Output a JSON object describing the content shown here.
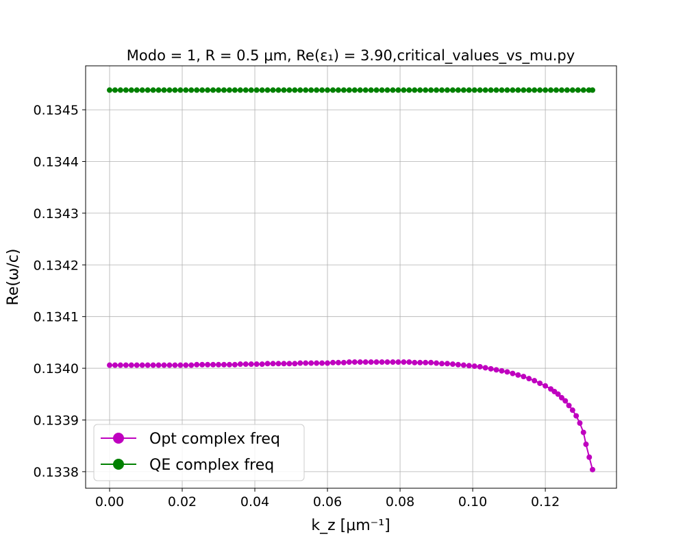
{
  "chart_data": {
    "type": "line",
    "title": "Modo = 1, R = 0.5 μm, Re(ε₁) = 3.90,critical_values_vs_mu.py",
    "xlabel": "k_z [μm⁻¹]",
    "ylabel": "Re(ω/c)",
    "xlim": [
      -0.0066,
      0.1396
    ],
    "ylim": [
      0.133768,
      0.134585
    ],
    "xticks": [
      0.0,
      0.02,
      0.04,
      0.06,
      0.08,
      0.1,
      0.12
    ],
    "xtick_labels": [
      "0.00",
      "0.02",
      "0.04",
      "0.06",
      "0.08",
      "0.10",
      "0.12"
    ],
    "yticks": [
      0.1338,
      0.1339,
      0.134,
      0.1341,
      0.1342,
      0.1343,
      0.1344,
      0.1345
    ],
    "ytick_labels": [
      "0.1338",
      "0.1339",
      "0.1340",
      "0.1341",
      "0.1342",
      "0.1343",
      "0.1344",
      "0.1345"
    ],
    "grid": true,
    "legend_position": "bottom-left",
    "series": [
      {
        "name": "Opt complex freq",
        "color": "#bf00bf",
        "marker": "circle",
        "x": [
          0.0,
          0.0015,
          0.003,
          0.0045,
          0.006,
          0.0075,
          0.009,
          0.0105,
          0.012,
          0.0135,
          0.015,
          0.0165,
          0.018,
          0.0195,
          0.021,
          0.0225,
          0.024,
          0.0255,
          0.027,
          0.0285,
          0.03,
          0.0315,
          0.033,
          0.0345,
          0.036,
          0.0375,
          0.039,
          0.0405,
          0.042,
          0.0435,
          0.045,
          0.0465,
          0.048,
          0.0495,
          0.051,
          0.0525,
          0.054,
          0.0555,
          0.057,
          0.0585,
          0.06,
          0.0615,
          0.063,
          0.0645,
          0.066,
          0.0675,
          0.069,
          0.0705,
          0.072,
          0.0735,
          0.075,
          0.0765,
          0.078,
          0.0795,
          0.081,
          0.0825,
          0.084,
          0.0855,
          0.087,
          0.0885,
          0.09,
          0.0915,
          0.093,
          0.0945,
          0.096,
          0.0975,
          0.099,
          0.1005,
          0.102,
          0.1035,
          0.105,
          0.1065,
          0.108,
          0.1095,
          0.111,
          0.1125,
          0.114,
          0.1155,
          0.117,
          0.1185,
          0.12,
          0.1215,
          0.1225,
          0.1235,
          0.1245,
          0.1255,
          0.1265,
          0.1275,
          0.1285,
          0.1295,
          0.1305,
          0.1312,
          0.1321,
          0.133
        ],
        "y": [
          0.134006,
          0.134006,
          0.134006,
          0.134006,
          0.134006,
          0.134006,
          0.134006,
          0.134006,
          0.134006,
          0.134006,
          0.134006,
          0.134006,
          0.134006,
          0.134006,
          0.134006,
          0.134006,
          0.134007,
          0.134007,
          0.134007,
          0.134007,
          0.134007,
          0.134007,
          0.134007,
          0.134007,
          0.134008,
          0.134008,
          0.134008,
          0.134008,
          0.134008,
          0.134009,
          0.134009,
          0.134009,
          0.134009,
          0.134009,
          0.134009,
          0.13401,
          0.13401,
          0.13401,
          0.13401,
          0.13401,
          0.13401,
          0.134011,
          0.134011,
          0.134011,
          0.134012,
          0.134012,
          0.134012,
          0.134012,
          0.134012,
          0.134012,
          0.134012,
          0.134012,
          0.134012,
          0.134012,
          0.134012,
          0.134012,
          0.134011,
          0.134011,
          0.134011,
          0.134011,
          0.13401,
          0.134009,
          0.134009,
          0.134008,
          0.134007,
          0.134006,
          0.134005,
          0.134004,
          0.134003,
          0.134001,
          0.133999,
          0.133997,
          0.133995,
          0.133993,
          0.13399,
          0.133987,
          0.133984,
          0.13398,
          0.133976,
          0.133971,
          0.133966,
          0.13396,
          0.133955,
          0.13395,
          0.133943,
          0.133937,
          0.133928,
          0.133919,
          0.133908,
          0.133894,
          0.133876,
          0.133853,
          0.133828,
          0.133804
        ]
      },
      {
        "name": "QE complex freq",
        "color": "#008000",
        "marker": "circle",
        "x": [
          0.0,
          0.0015,
          0.003,
          0.0045,
          0.006,
          0.0075,
          0.009,
          0.0105,
          0.012,
          0.0135,
          0.015,
          0.0165,
          0.018,
          0.0195,
          0.021,
          0.0225,
          0.024,
          0.0255,
          0.027,
          0.0285,
          0.03,
          0.0315,
          0.033,
          0.0345,
          0.036,
          0.0375,
          0.039,
          0.0405,
          0.042,
          0.0435,
          0.045,
          0.0465,
          0.048,
          0.0495,
          0.051,
          0.0525,
          0.054,
          0.0555,
          0.057,
          0.0585,
          0.06,
          0.0615,
          0.063,
          0.0645,
          0.066,
          0.0675,
          0.069,
          0.0705,
          0.072,
          0.0735,
          0.075,
          0.0765,
          0.078,
          0.0795,
          0.081,
          0.0825,
          0.084,
          0.0855,
          0.087,
          0.0885,
          0.09,
          0.0915,
          0.093,
          0.0945,
          0.096,
          0.0975,
          0.099,
          0.1005,
          0.102,
          0.1035,
          0.105,
          0.1065,
          0.108,
          0.1095,
          0.111,
          0.1125,
          0.114,
          0.1155,
          0.117,
          0.1185,
          0.12,
          0.1215,
          0.123,
          0.1245,
          0.126,
          0.1275,
          0.129,
          0.1305,
          0.132,
          0.133
        ],
        "y": [
          0.134538,
          0.134538,
          0.134538,
          0.134538,
          0.134538,
          0.134538,
          0.134538,
          0.134538,
          0.134538,
          0.134538,
          0.134538,
          0.134538,
          0.134538,
          0.134538,
          0.134538,
          0.134538,
          0.134538,
          0.134538,
          0.134538,
          0.134538,
          0.134538,
          0.134538,
          0.134538,
          0.134538,
          0.134538,
          0.134538,
          0.134538,
          0.134538,
          0.134538,
          0.134538,
          0.134538,
          0.134538,
          0.134538,
          0.134538,
          0.134538,
          0.134538,
          0.134538,
          0.134538,
          0.134538,
          0.134538,
          0.134538,
          0.134538,
          0.134538,
          0.134538,
          0.134538,
          0.134538,
          0.134538,
          0.134538,
          0.134538,
          0.134538,
          0.134538,
          0.134538,
          0.134538,
          0.134538,
          0.134538,
          0.134538,
          0.134538,
          0.134538,
          0.134538,
          0.134538,
          0.134538,
          0.134538,
          0.134538,
          0.134538,
          0.134538,
          0.134538,
          0.134538,
          0.134538,
          0.134538,
          0.134538,
          0.134538,
          0.134538,
          0.134538,
          0.134538,
          0.134538,
          0.134538,
          0.134538,
          0.134538,
          0.134538,
          0.134538,
          0.134538,
          0.134538,
          0.134538,
          0.134538,
          0.134538,
          0.134538,
          0.134538,
          0.134538,
          0.134538,
          0.134538
        ]
      }
    ]
  }
}
